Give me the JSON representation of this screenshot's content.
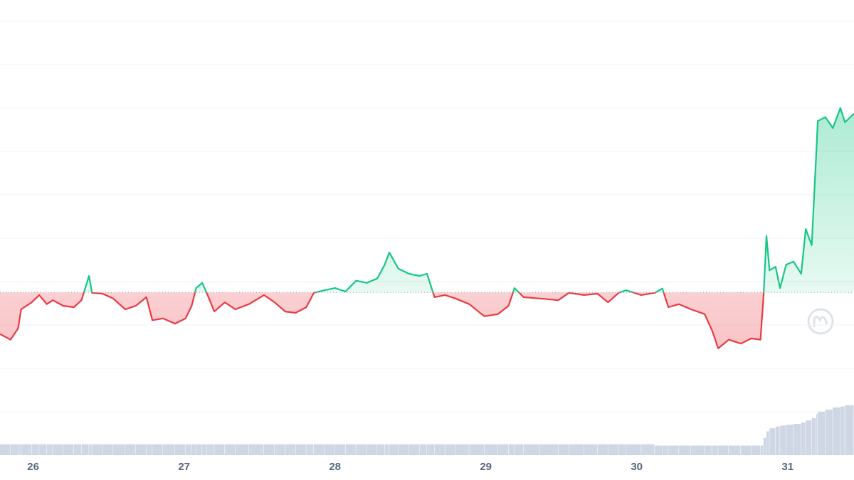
{
  "chart_data": {
    "type": "line",
    "x": [
      25.78,
      25.85,
      25.9,
      25.92,
      25.99,
      26.04,
      26.09,
      26.13,
      26.2,
      26.27,
      26.32,
      26.37,
      26.39,
      26.46,
      26.53,
      26.61,
      26.68,
      26.75,
      26.79,
      26.86,
      26.94,
      27.01,
      27.05,
      27.08,
      27.12,
      27.15,
      27.2,
      27.27,
      27.34,
      27.43,
      27.53,
      27.6,
      27.67,
      27.74,
      27.81,
      27.86,
      27.93,
      28.0,
      28.07,
      28.14,
      28.21,
      28.28,
      28.33,
      28.36,
      28.42,
      28.49,
      28.56,
      28.61,
      28.66,
      28.73,
      28.8,
      28.89,
      28.99,
      29.08,
      29.15,
      29.19,
      29.25,
      29.36,
      29.48,
      29.55,
      29.65,
      29.74,
      29.81,
      29.88,
      29.93,
      30.03,
      30.12,
      30.17,
      30.21,
      30.28,
      30.36,
      30.45,
      30.5,
      30.54,
      30.61,
      30.69,
      30.76,
      30.82,
      30.84,
      30.86,
      30.88,
      30.92,
      30.95,
      30.99,
      31.04,
      31.09,
      31.12,
      31.16,
      31.19,
      31.2,
      31.25,
      31.3,
      31.35,
      31.38,
      31.44
    ],
    "series": [
      {
        "values": [
          2.79,
          2.66,
          2.92,
          3.36,
          3.52,
          3.69,
          3.48,
          3.57,
          3.44,
          3.41,
          3.57,
          4.13,
          3.74,
          3.72,
          3.61,
          3.36,
          3.44,
          3.64,
          3.11,
          3.15,
          3.03,
          3.15,
          3.44,
          3.85,
          3.97,
          3.74,
          3.31,
          3.52,
          3.36,
          3.48,
          3.69,
          3.52,
          3.31,
          3.28,
          3.41,
          3.74,
          3.8,
          3.85,
          3.77,
          4.02,
          3.97,
          4.07,
          4.39,
          4.67,
          4.3,
          4.18,
          4.13,
          4.18,
          3.64,
          3.69,
          3.61,
          3.48,
          3.2,
          3.25,
          3.44,
          3.85,
          3.64,
          3.61,
          3.57,
          3.74,
          3.69,
          3.72,
          3.52,
          3.74,
          3.8,
          3.69,
          3.74,
          3.84,
          3.41,
          3.48,
          3.36,
          3.25,
          2.87,
          2.46,
          2.66,
          2.57,
          2.69,
          2.66,
          3.64,
          5.05,
          4.26,
          4.34,
          3.85,
          4.39,
          4.46,
          4.18,
          5.21,
          4.84,
          6.97,
          7.7,
          7.79,
          7.54,
          8.0,
          7.67,
          7.87
        ],
        "color_up": "#16c784",
        "color_down": "#ea3943"
      }
    ],
    "volume": {
      "color": "#cfd6e4",
      "values": [
        0.25,
        0.25,
        0.25,
        0.25,
        0.25,
        0.25,
        0.25,
        0.25,
        0.25,
        0.25,
        0.25,
        0.25,
        0.25,
        0.25,
        0.25,
        0.25,
        0.25,
        0.25,
        0.25,
        0.25,
        0.25,
        0.25,
        0.25,
        0.25,
        0.25,
        0.25,
        0.25,
        0.25,
        0.25,
        0.25,
        0.25,
        0.25,
        0.25,
        0.25,
        0.25,
        0.25,
        0.25,
        0.25,
        0.25,
        0.25,
        0.25,
        0.25,
        0.25,
        0.25,
        0.25,
        0.25,
        0.25,
        0.25,
        0.25,
        0.25,
        0.25,
        0.25,
        0.25,
        0.25,
        0.25,
        0.25,
        0.25,
        0.25,
        0.25,
        0.25,
        0.25,
        0.25,
        0.25,
        0.25,
        0.25,
        0.25,
        0.22,
        0.22,
        0.22,
        0.22,
        0.22,
        0.22,
        0.22,
        0.22,
        0.22,
        0.22,
        0.22,
        0.22,
        0.4,
        0.55,
        0.62,
        0.66,
        0.68,
        0.7,
        0.72,
        0.75,
        0.8,
        0.85,
        0.95,
        1.0,
        1.05,
        1.1,
        1.12,
        1.15,
        1.15
      ]
    },
    "baseline": 3.75,
    "xlim": [
      25.78,
      31.44
    ],
    "xticks": [
      26,
      27,
      28,
      29,
      30,
      31
    ],
    "ylim": [
      0,
      10.49
    ],
    "yticks": [
      1,
      2,
      3,
      4,
      5,
      6,
      7,
      8,
      9,
      10
    ],
    "grid": true,
    "ytick_labels": false
  }
}
